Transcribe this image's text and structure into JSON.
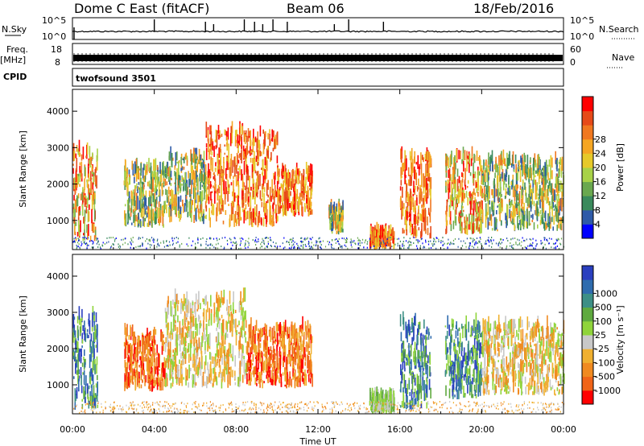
{
  "header": {
    "radar": "Dome C East (fitACF)",
    "beam": "Beam 06",
    "date": "18/Feb/2016"
  },
  "aux_panels": {
    "nsky_label": "N.Sky",
    "nsearch_label": "N.Search",
    "nsky_ticks": [
      "10^5",
      "10^0"
    ],
    "nsearch_ticks": [
      "10^5",
      "10^0"
    ],
    "freq_label": "Freq.",
    "freq_unit": "[MHz]",
    "freq_ticks": [
      "18",
      "8"
    ],
    "nave_label": "Nave",
    "nave_ticks": [
      "60",
      "0"
    ],
    "cpid_label": "CPID",
    "cpid_value": "twofsound 3501"
  },
  "chart_data": [
    {
      "type": "heatmap",
      "panel": "power",
      "ylabel": "Slant Range [km]",
      "xlabel": "",
      "x_ticks": [
        "00:00",
        "04:00",
        "08:00",
        "12:00",
        "16:00",
        "20:00",
        "00:00"
      ],
      "xlim_hours": [
        0,
        24
      ],
      "ylim": [
        200,
        4600
      ],
      "y_ticks": [
        1000,
        2000,
        3000,
        4000
      ],
      "colorbar": {
        "label": "Power [dB]",
        "ticks": [
          "4",
          "8",
          "12",
          "16",
          "20",
          "24",
          "28"
        ],
        "colors": [
          "#0000ff",
          "#2e5aa8",
          "#3a8a5c",
          "#6aa84f",
          "#a8d248",
          "#e6c92a",
          "#f5a623",
          "#f07820",
          "#e64a19",
          "#ff0000"
        ]
      },
      "echo_regions": [
        {
          "t": [
            0.0,
            1.2
          ],
          "r": [
            400,
            2900
          ],
          "mean": "mid-high"
        },
        {
          "t": [
            2.5,
            4.5
          ],
          "r": [
            800,
            2400
          ],
          "mean": "mid"
        },
        {
          "t": [
            4.5,
            6.5
          ],
          "r": [
            900,
            2700
          ],
          "mean": "mid"
        },
        {
          "t": [
            6.5,
            10.0
          ],
          "r": [
            800,
            3400
          ],
          "mean": "high"
        },
        {
          "t": [
            10.0,
            11.7
          ],
          "r": [
            1100,
            2300
          ],
          "mean": "high"
        },
        {
          "t": [
            12.5,
            13.2
          ],
          "r": [
            600,
            1300
          ],
          "mean": "mid"
        },
        {
          "t": [
            14.5,
            15.7
          ],
          "r": [
            200,
            600
          ],
          "mean": "high"
        },
        {
          "t": [
            16.0,
            17.5
          ],
          "r": [
            500,
            2700
          ],
          "mean": "high"
        },
        {
          "t": [
            18.2,
            20.0
          ],
          "r": [
            600,
            2700
          ],
          "mean": "mid-high"
        },
        {
          "t": [
            20.0,
            24.0
          ],
          "r": [
            700,
            2600
          ],
          "mean": "mid"
        }
      ]
    },
    {
      "type": "heatmap",
      "panel": "velocity",
      "ylabel": "Slant Range [km]",
      "xlabel": "Time UT",
      "x_ticks": [
        "00:00",
        "04:00",
        "08:00",
        "12:00",
        "16:00",
        "20:00",
        "00:00"
      ],
      "xlim_hours": [
        0,
        24
      ],
      "ylim": [
        200,
        4600
      ],
      "y_ticks": [
        1000,
        2000,
        3000,
        4000
      ],
      "colorbar": {
        "label": "Velocity [m s⁻¹]",
        "ticks": [
          "1000",
          "500",
          "100",
          "25",
          "-25",
          "-100",
          "-500",
          "-1000"
        ],
        "colors": [
          "#2a3fbf",
          "#2f6cae",
          "#3d8f86",
          "#5faa3f",
          "#8fd43a",
          "#c8c8c8",
          "#f0b030",
          "#f08a20",
          "#f06418",
          "#ff0000"
        ]
      },
      "echo_regions": [
        {
          "t": [
            0.0,
            1.2
          ],
          "r": [
            300,
            2800
          ],
          "mean": "positive"
        },
        {
          "t": [
            2.5,
            4.5
          ],
          "r": [
            800,
            2400
          ],
          "mean": "negative"
        },
        {
          "t": [
            4.5,
            8.5
          ],
          "r": [
            900,
            3300
          ],
          "mean": "near-zero"
        },
        {
          "t": [
            8.5,
            11.7
          ],
          "r": [
            900,
            2500
          ],
          "mean": "negative"
        },
        {
          "t": [
            14.5,
            15.7
          ],
          "r": [
            200,
            600
          ],
          "mean": "low-positive"
        },
        {
          "t": [
            16.0,
            17.5
          ],
          "r": [
            300,
            2700
          ],
          "mean": "positive"
        },
        {
          "t": [
            18.2,
            20.0
          ],
          "r": [
            600,
            2600
          ],
          "mean": "positive"
        },
        {
          "t": [
            20.0,
            24.0
          ],
          "r": [
            700,
            2600
          ],
          "mean": "near-zero"
        }
      ]
    }
  ]
}
